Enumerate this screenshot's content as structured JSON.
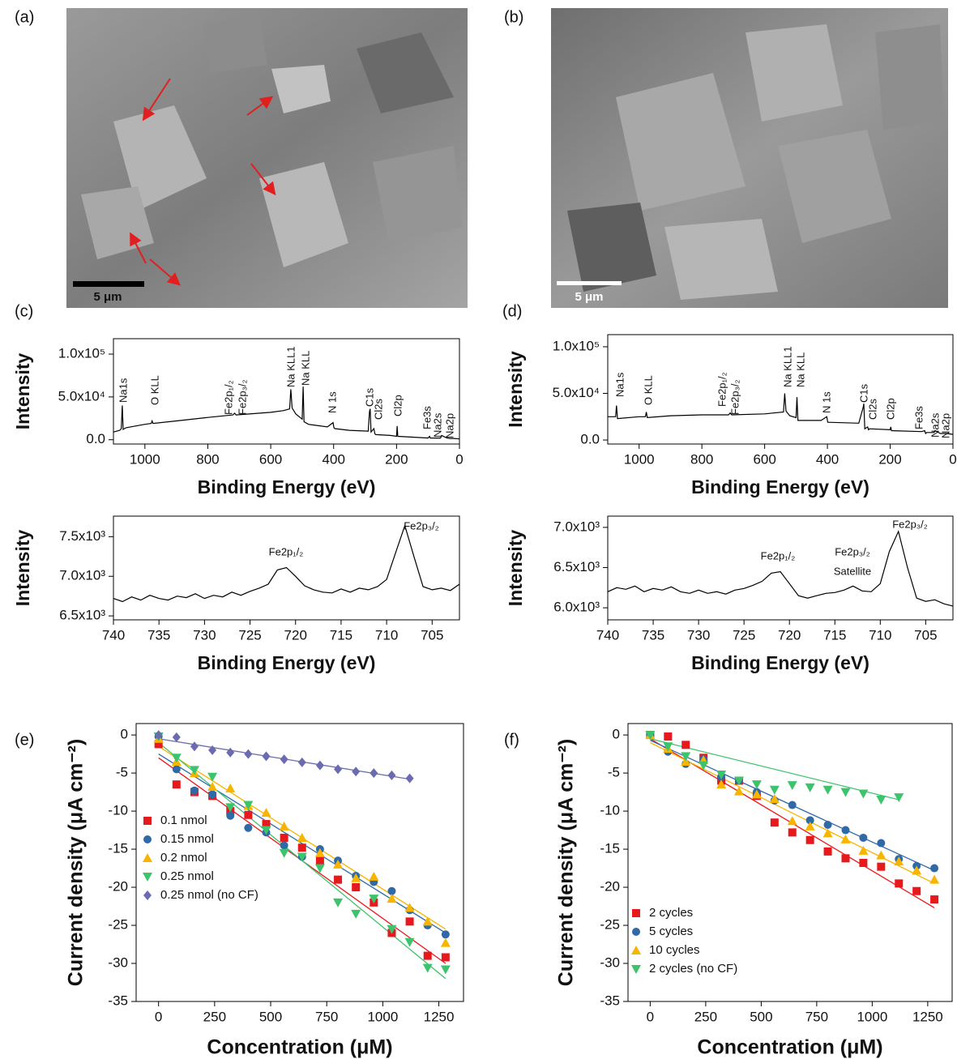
{
  "panel_labels": [
    "(a)",
    "(b)",
    "(c)",
    "(d)",
    "(e)",
    "(f)"
  ],
  "images": [
    {
      "scale_bar": "5 μm"
    },
    {
      "scale_bar": "5 μm"
    }
  ],
  "chart_data": [
    {
      "type": "line",
      "xlabel": "Binding Energy (eV)",
      "ylabel": "Intensity",
      "color": "#000000",
      "xlim": [
        1100,
        0
      ],
      "xticks": [
        1000,
        800,
        600,
        400,
        200,
        0
      ],
      "ylim": [
        -5000,
        118000
      ],
      "yticks": [
        {
          "value": 0,
          "label": "0.0"
        },
        {
          "value": 50000,
          "label": "5.0x10⁴"
        },
        {
          "value": 100000,
          "label": "1.0x10⁵"
        }
      ],
      "annotations": [
        "Na1s",
        "O KLL",
        "Fe2p₁/₂",
        "Fe2p₃/₂",
        "Na KLL1",
        "Na KLL",
        "N 1s",
        "C1s",
        "Cl2s",
        "Cl2p",
        "Fe3s",
        "Na2s",
        "Na2p"
      ],
      "x": [
        1100,
        1080,
        1075,
        1072,
        1069,
        1060,
        1000,
        980,
        977,
        974,
        900,
        800,
        720,
        715,
        710,
        600,
        560,
        540,
        536,
        532,
        520,
        500,
        497,
        494,
        480,
        420,
        402,
        399,
        396,
        350,
        290,
        286,
        284,
        281,
        272,
        269,
        266,
        220,
        200,
        198,
        196,
        150,
        100,
        95,
        93,
        60,
        57,
        40,
        31,
        20,
        0
      ],
      "values": [
        9000,
        11000,
        13000,
        40000,
        12000,
        14000,
        18000,
        19000,
        22000,
        19000,
        22000,
        26000,
        29000,
        31000,
        29000,
        32000,
        34000,
        36000,
        59000,
        37000,
        30000,
        24000,
        62000,
        21000,
        18000,
        15000,
        20000,
        14000,
        13000,
        11000,
        10000,
        33000,
        36000,
        9000,
        13000,
        7000,
        6000,
        5000,
        4000,
        16000,
        4000,
        3000,
        2000,
        4000,
        2000,
        2000,
        5000,
        2000,
        1500,
        1500,
        1000
      ]
    },
    {
      "type": "line",
      "xlabel": "Binding Energy (eV)",
      "ylabel": "Intensity",
      "color": "#000000",
      "xlim": [
        740,
        702
      ],
      "xticks": [
        740,
        735,
        730,
        725,
        720,
        715,
        710,
        705
      ],
      "ylim": [
        6450,
        7760
      ],
      "yticks": [
        {
          "value": 6500,
          "label": "6.5x10³"
        },
        {
          "value": 7000,
          "label": "7.0x10³"
        },
        {
          "value": 7500,
          "label": "7.5x10³"
        }
      ],
      "annotations": [
        "Fe2p₁/₂",
        "Fe2p₃/₂"
      ],
      "x": [
        740,
        739,
        738,
        737,
        736,
        735,
        734,
        733,
        732,
        731,
        730,
        729,
        728,
        727,
        726,
        725,
        724,
        723,
        722,
        721,
        720,
        719,
        718,
        717,
        716,
        715,
        714,
        713,
        712,
        711,
        710,
        709,
        708,
        707,
        706,
        705,
        704,
        703,
        702
      ],
      "values": [
        6720,
        6680,
        6740,
        6700,
        6760,
        6720,
        6700,
        6750,
        6730,
        6780,
        6720,
        6760,
        6740,
        6800,
        6760,
        6810,
        6850,
        6900,
        7080,
        7110,
        7000,
        6880,
        6830,
        6800,
        6790,
        6840,
        6800,
        6850,
        6830,
        6870,
        6960,
        7300,
        7640,
        7250,
        6870,
        6830,
        6850,
        6820,
        6900
      ]
    },
    {
      "type": "line",
      "xlabel": "Binding Energy (eV)",
      "ylabel": "Intensity",
      "color": "#000000",
      "xlim": [
        1100,
        0
      ],
      "xticks": [
        1000,
        800,
        600,
        400,
        200,
        0
      ],
      "ylim": [
        -4300,
        113000
      ],
      "yticks": [
        {
          "value": 0,
          "label": "0.0"
        },
        {
          "value": 50000,
          "label": "5.0x10⁴"
        },
        {
          "value": 100000,
          "label": "1.0x10⁵"
        }
      ],
      "annotations": [
        "Na1s",
        "O KLL",
        "Fe2p₁/₂",
        "Fe2p₃/₂",
        "Na KLL1",
        "Na KLL",
        "N 1s",
        "C1s",
        "Cl2s",
        "Cl2p",
        "Fe3s",
        "Na2s",
        "Na2p"
      ],
      "x": [
        1100,
        1075,
        1072,
        1069,
        1000,
        980,
        977,
        974,
        900,
        800,
        715,
        710,
        705,
        600,
        540,
        536,
        532,
        520,
        500,
        497,
        494,
        420,
        402,
        399,
        396,
        300,
        286,
        284,
        281,
        272,
        269,
        266,
        200,
        198,
        196,
        100,
        90,
        87,
        84,
        60,
        57,
        40,
        20,
        0
      ],
      "values": [
        25000,
        25000,
        37000,
        23000,
        25000,
        25000,
        30000,
        24000,
        26000,
        27000,
        27000,
        29000,
        27000,
        28000,
        30000,
        50000,
        31000,
        26000,
        24000,
        46000,
        21000,
        21000,
        25000,
        19000,
        19000,
        18000,
        35000,
        39000,
        12000,
        14000,
        11000,
        12000,
        11000,
        14000,
        10000,
        9000,
        10000,
        7000,
        8000,
        8000,
        10000,
        7000,
        7000,
        6000
      ]
    },
    {
      "type": "line",
      "xlabel": "Binding Energy (eV)",
      "ylabel": "Intensity",
      "color": "#000000",
      "xlim": [
        740,
        702
      ],
      "xticks": [
        740,
        735,
        730,
        725,
        720,
        715,
        710,
        705
      ],
      "ylim": [
        5850,
        7140
      ],
      "yticks": [
        {
          "value": 6000,
          "label": "6.0x10³"
        },
        {
          "value": 6500,
          "label": "6.5x10³"
        },
        {
          "value": 7000,
          "label": "7.0x10³"
        }
      ],
      "annotations": [
        "Fe2p₁/₂",
        "Fe2p₃/₂",
        "Satellite",
        "Fe2p₃/₂"
      ],
      "x": [
        740,
        739,
        738,
        737,
        736,
        735,
        734,
        733,
        732,
        731,
        730,
        729,
        728,
        727,
        726,
        725,
        724,
        723,
        722,
        721,
        720,
        719,
        718,
        717,
        716,
        715,
        714,
        713,
        712,
        711,
        710,
        709,
        708,
        707,
        706,
        705,
        704,
        703,
        702
      ],
      "values": [
        6200,
        6250,
        6230,
        6270,
        6200,
        6240,
        6220,
        6260,
        6200,
        6180,
        6220,
        6180,
        6200,
        6170,
        6220,
        6240,
        6280,
        6330,
        6430,
        6450,
        6300,
        6150,
        6120,
        6150,
        6180,
        6190,
        6220,
        6270,
        6210,
        6200,
        6300,
        6700,
        6950,
        6500,
        6120,
        6080,
        6100,
        6050,
        6020
      ]
    },
    {
      "type": "scatter",
      "xlabel": "Concentration (μM)",
      "ylabel": "Current density (μA cm⁻²)",
      "xlim": [
        -100,
        1360
      ],
      "xticks": [
        0,
        250,
        500,
        750,
        1000,
        1250
      ],
      "ylim": [
        -35,
        1.5
      ],
      "yticks": [
        -35,
        -30,
        -25,
        -20,
        -15,
        -10,
        -5,
        0
      ],
      "series": [
        {
          "name": "0.1 nmol",
          "color": "#e8191c",
          "marker": "square",
          "x": [
            0,
            80,
            160,
            240,
            320,
            400,
            480,
            560,
            640,
            720,
            800,
            880,
            960,
            1040,
            1120,
            1200,
            1280
          ],
          "values": [
            -1.2,
            -6.5,
            -7.5,
            -8,
            -10,
            -10.5,
            -11.7,
            -13.5,
            -14.8,
            -16.5,
            -19,
            -20,
            -22,
            -26,
            -24.5,
            -29,
            -29.2
          ],
          "fit": {
            "x": [
              0,
              1280
            ],
            "y": [
              -3,
              -30
            ]
          }
        },
        {
          "name": "0.15 nmol",
          "color": "#2f6aa8",
          "marker": "circle",
          "x": [
            0,
            80,
            160,
            240,
            320,
            400,
            480,
            560,
            640,
            720,
            800,
            880,
            960,
            1040,
            1120,
            1200,
            1280
          ],
          "values": [
            -0.2,
            -4.5,
            -7.3,
            -7.8,
            -10.6,
            -12.2,
            -12.8,
            -14.5,
            -16,
            -15,
            -16.5,
            -18.5,
            -19.3,
            -20.5,
            -23,
            -25,
            -26.2
          ],
          "fit": {
            "x": [
              0,
              1280
            ],
            "y": [
              -2.5,
              -26
            ]
          }
        },
        {
          "name": "0.2 nmol",
          "color": "#f7b500",
          "marker": "triangle-up",
          "x": [
            0,
            80,
            160,
            240,
            320,
            400,
            480,
            560,
            640,
            720,
            800,
            880,
            960,
            1040,
            1120,
            1200,
            1280
          ],
          "values": [
            -0.5,
            -3.5,
            -5,
            -6.8,
            -7,
            -9.3,
            -10.2,
            -12,
            -13.5,
            -15.5,
            -17,
            -18.8,
            -18.6,
            -21.5,
            -22.7,
            -24.5,
            -27.3
          ],
          "fit": {
            "x": [
              0,
              1280
            ],
            "y": [
              -1.5,
              -25.5
            ]
          }
        },
        {
          "name": "0.25 nmol",
          "color": "#3cc46c",
          "marker": "triangle-down",
          "x": [
            0,
            80,
            160,
            240,
            320,
            400,
            480,
            560,
            640,
            720,
            800,
            880,
            960,
            1040,
            1120,
            1200,
            1280
          ],
          "values": [
            -0.2,
            -3,
            -4.6,
            -5.5,
            -9.5,
            -9.2,
            -12.5,
            -15.5,
            -16,
            -17.5,
            -22,
            -23.5,
            -21.5,
            -25.5,
            -27.2,
            -30.6,
            -30.8
          ],
          "fit": {
            "x": [
              0,
              1280
            ],
            "y": [
              -1,
              -32
            ]
          }
        },
        {
          "name": "0.25 nmol (no CF)",
          "color": "#6b6bb0",
          "marker": "diamond",
          "x": [
            0,
            80,
            160,
            240,
            320,
            400,
            480,
            560,
            640,
            720,
            800,
            880,
            960,
            1040,
            1120
          ],
          "values": [
            0,
            -0.3,
            -1.5,
            -2,
            -2.3,
            -2.5,
            -2.8,
            -3.2,
            -3.6,
            -4,
            -4.5,
            -4.8,
            -5,
            -5.3,
            -5.7
          ],
          "fit": {
            "x": [
              0,
              1120
            ],
            "y": [
              -0.5,
              -5.8
            ]
          }
        }
      ]
    },
    {
      "type": "scatter",
      "xlabel": "Concentration (μM)",
      "ylabel": "Current density (μA cm⁻²)",
      "xlim": [
        -100,
        1360
      ],
      "xticks": [
        0,
        250,
        500,
        750,
        1000,
        1250
      ],
      "ylim": [
        -35,
        1.5
      ],
      "yticks": [
        -35,
        -30,
        -25,
        -20,
        -15,
        -10,
        -5,
        0
      ],
      "series": [
        {
          "name": "2 cycles",
          "color": "#e8191c",
          "marker": "square",
          "x": [
            0,
            80,
            160,
            240,
            320,
            400,
            480,
            560,
            640,
            720,
            800,
            880,
            960,
            1040,
            1120,
            1200,
            1280
          ],
          "values": [
            0,
            -0.2,
            -1.3,
            -3,
            -6,
            -6,
            -8,
            -11.5,
            -12.8,
            -13.8,
            -15.3,
            -16.2,
            -16.8,
            -17.3,
            -19.5,
            -20.5,
            -21.6
          ],
          "fit": {
            "x": [
              0,
              1280
            ],
            "y": [
              -0.5,
              -22.7
            ]
          }
        },
        {
          "name": "5 cycles",
          "color": "#2f6aa8",
          "marker": "circle",
          "x": [
            0,
            80,
            160,
            240,
            320,
            400,
            480,
            560,
            640,
            720,
            800,
            880,
            960,
            1040,
            1120,
            1200,
            1280
          ],
          "values": [
            0,
            -2.2,
            -3.8,
            -3.2,
            -5.5,
            -6,
            -7.5,
            -8.6,
            -9.2,
            -11.2,
            -11.8,
            -12.5,
            -13.5,
            -14.2,
            -16.3,
            -17.2,
            -17.5
          ],
          "fit": {
            "x": [
              0,
              1280
            ],
            "y": [
              -0.7,
              -17.8
            ]
          }
        },
        {
          "name": "10 cycles",
          "color": "#f7b500",
          "marker": "triangle-up",
          "x": [
            0,
            80,
            160,
            240,
            320,
            400,
            480,
            560,
            640,
            720,
            800,
            880,
            960,
            1040,
            1120,
            1200,
            1280
          ],
          "values": [
            0,
            -1.8,
            -3.5,
            -3.3,
            -6.5,
            -7.4,
            -7.8,
            -8.4,
            -11.3,
            -12,
            -12.9,
            -13.7,
            -15.2,
            -15.8,
            -16.6,
            -17.8,
            -19
          ],
          "fit": {
            "x": [
              0,
              1280
            ],
            "y": [
              -1,
              -19.5
            ]
          }
        },
        {
          "name": "2 cycles (no CF)",
          "color": "#3cc46c",
          "marker": "triangle-down",
          "x": [
            0,
            80,
            160,
            240,
            320,
            400,
            480,
            560,
            640,
            720,
            800,
            880,
            960,
            1040,
            1120
          ],
          "values": [
            0,
            -1.5,
            -2.8,
            -4,
            -5.2,
            -6,
            -6.5,
            -7.2,
            -6.6,
            -6.9,
            -7.2,
            -7.5,
            -7.7,
            -8.5,
            -8.2
          ],
          "fit": {
            "x": [
              0,
              1120
            ],
            "y": [
              -0.5,
              -8.5
            ]
          }
        }
      ]
    }
  ]
}
